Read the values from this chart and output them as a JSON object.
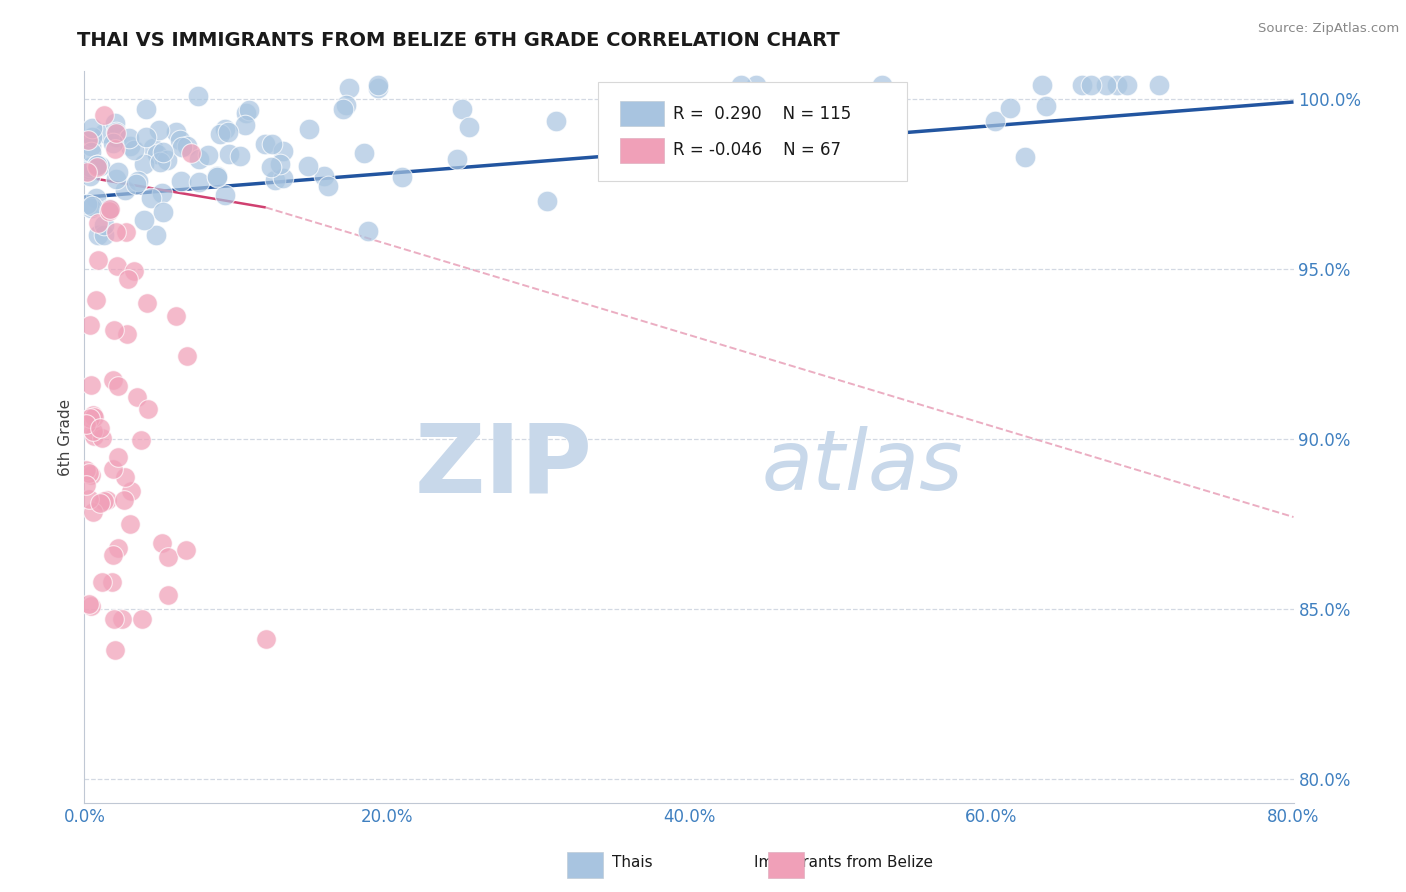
{
  "title": "THAI VS IMMIGRANTS FROM BELIZE 6TH GRADE CORRELATION CHART",
  "source": "Source: ZipAtlas.com",
  "ylabel": "6th Grade",
  "xlim": [
    0.0,
    0.8
  ],
  "ylim": [
    0.793,
    1.008
  ],
  "yticks": [
    0.8,
    0.85,
    0.9,
    0.95,
    1.0
  ],
  "ytick_labels": [
    "80.0%",
    "85.0%",
    "90.0%",
    "95.0%",
    "100.0%"
  ],
  "xticks": [
    0.0,
    0.2,
    0.4,
    0.6,
    0.8
  ],
  "xtick_labels": [
    "0.0%",
    "20.0%",
    "40.0%",
    "60.0%",
    "80.0%"
  ],
  "blue_R": 0.29,
  "blue_N": 115,
  "pink_R": -0.046,
  "pink_N": 67,
  "blue_color": "#a8c4e0",
  "blue_line_color": "#2255a0",
  "pink_color": "#f0a0b8",
  "pink_line_solid_color": "#d04070",
  "pink_line_dash_color": "#e8a0b8",
  "grid_color": "#c8d0dc",
  "watermark_text_color": "#c8d8ea",
  "background_color": "#ffffff",
  "title_color": "#1a1a1a",
  "right_label_color": "#4080c0",
  "blue_trendline": [
    0.0,
    0.8,
    0.971,
    0.999
  ],
  "pink_solid_line": [
    0.0,
    0.12,
    0.977,
    0.968
  ],
  "pink_dash_line": [
    0.12,
    0.8,
    0.968,
    0.877
  ]
}
